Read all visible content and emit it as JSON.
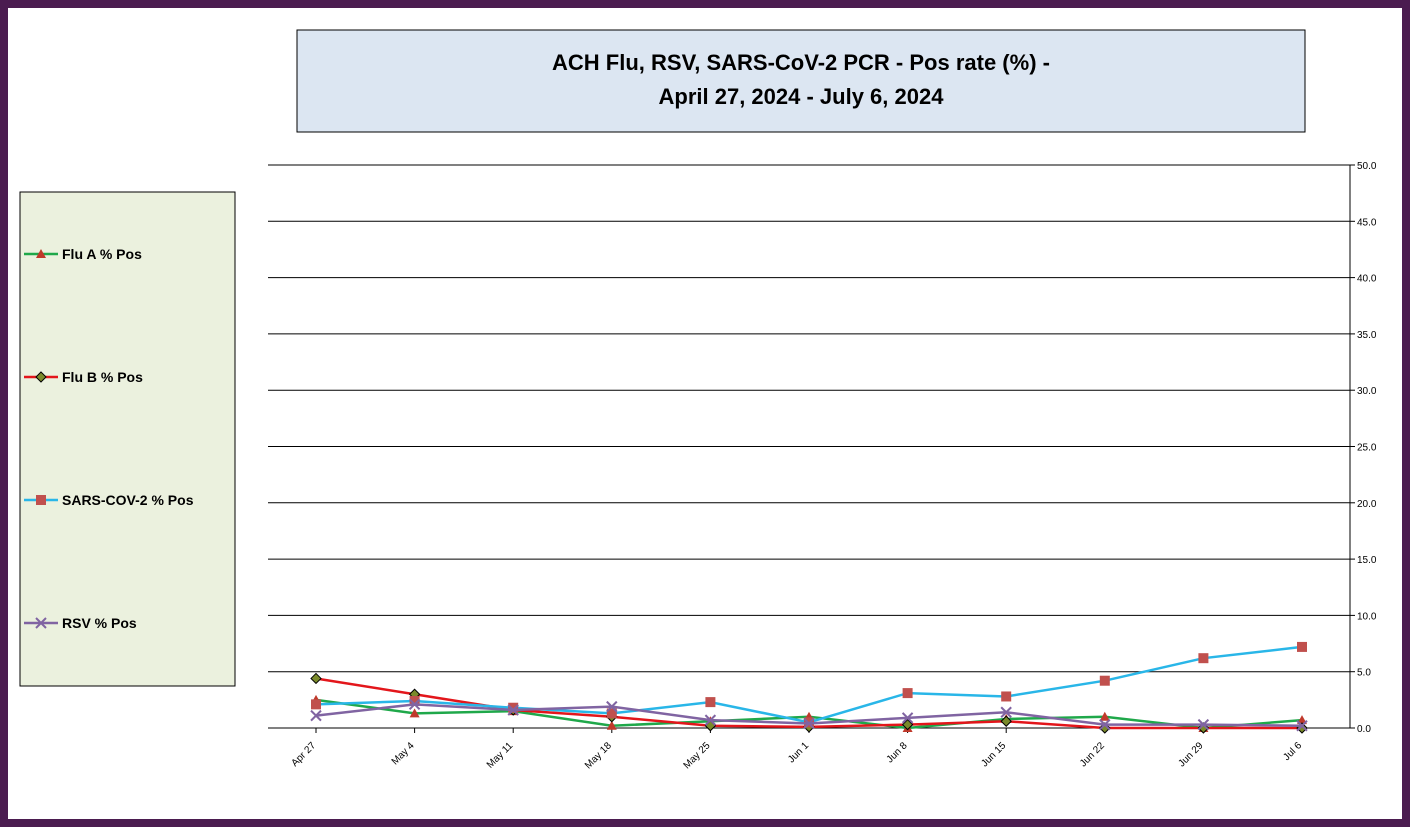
{
  "chart_data": {
    "type": "line",
    "title": "ACH Flu, RSV, SARS-CoV-2 PCR -  Pos rate (%) -",
    "subtitle": "April 27, 2024 - July 6, 2024",
    "categories": [
      "Apr 27",
      "May 4",
      "May 11",
      "May 18",
      "May 25",
      "Jun 1",
      "Jun 8",
      "Jun 15",
      "Jun 22",
      "Jun 29",
      "Jul 6"
    ],
    "series": [
      {
        "name": "Flu A % Pos",
        "color": "#1fa84a",
        "marker": "triangle",
        "marker_color": "#c0392b",
        "values": [
          2.5,
          1.3,
          1.5,
          0.2,
          0.6,
          1.0,
          0.0,
          0.8,
          1.0,
          0.0,
          0.7
        ]
      },
      {
        "name": "Flu B % Pos",
        "color": "#e3161b",
        "marker": "diamond",
        "marker_color": "#7a8a2a",
        "values": [
          4.4,
          3.0,
          1.6,
          1.0,
          0.2,
          0.1,
          0.3,
          0.6,
          0.0,
          0.0,
          0.0
        ]
      },
      {
        "name": "SARS-COV-2 % Pos",
        "color": "#29b6e8",
        "marker": "square",
        "marker_color": "#c0504d",
        "values": [
          2.1,
          2.4,
          1.8,
          1.3,
          2.3,
          0.5,
          3.1,
          2.8,
          4.2,
          6.2,
          7.2
        ]
      },
      {
        "name": "RSV % Pos",
        "color": "#8064a2",
        "marker": "x",
        "marker_color": "#8064a2",
        "values": [
          1.1,
          2.1,
          1.6,
          1.9,
          0.7,
          0.4,
          0.9,
          1.4,
          0.3,
          0.3,
          0.2
        ]
      }
    ],
    "ylim": [
      0,
      50
    ],
    "yticks": [
      {
        "value": 0,
        "label": "0.0"
      },
      {
        "value": 5,
        "label": "5.0"
      },
      {
        "value": 10,
        "label": "10.0"
      },
      {
        "value": 15,
        "label": "15.0"
      },
      {
        "value": 20,
        "label": "20.0"
      },
      {
        "value": 25,
        "label": "25.0"
      },
      {
        "value": 30,
        "label": "30.0"
      },
      {
        "value": 35,
        "label": "35.0"
      },
      {
        "value": 40,
        "label": "40.0"
      },
      {
        "value": 45,
        "label": "45.0"
      },
      {
        "value": 50,
        "label": "50.0"
      }
    ],
    "grid": true
  }
}
